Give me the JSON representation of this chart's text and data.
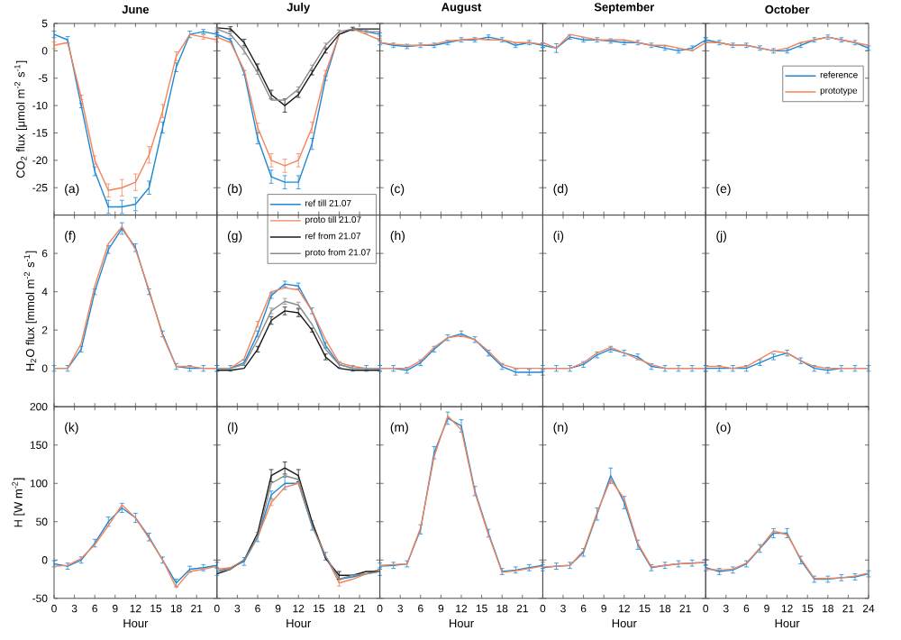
{
  "chart_data": [
    {
      "type": "line",
      "title": "June",
      "ylabel": "CO$_{2}$ flux [μmol m$^{-2}$ s$^{-1}$]",
      "x": [
        0,
        2,
        4,
        6,
        8,
        10,
        12,
        14,
        16,
        18,
        20,
        22,
        24
      ],
      "xlim": [
        0,
        24
      ],
      "ylim": [
        -30,
        5
      ],
      "xticks": [
        0,
        3,
        6,
        9,
        12,
        15,
        18,
        21
      ],
      "yticks": [
        -25,
        -20,
        -15,
        -10,
        -5,
        0,
        5
      ],
      "tick_labels": "y",
      "annotations": [
        "(a)"
      ],
      "series": [
        {
          "color": "#1f88d4",
          "values": [
            3,
            2,
            -10,
            -22,
            -28.5,
            -28.5,
            -28,
            -25,
            -14,
            -3,
            3,
            3.5,
            3
          ],
          "errors": [
            0.6,
            0.6,
            0.4,
            0.8,
            1.2,
            1.2,
            1.2,
            1.2,
            1,
            0.8,
            0.6,
            0.4,
            0.4
          ]
        },
        {
          "color": "#f4845a",
          "values": [
            1,
            1.5,
            -8.5,
            -20,
            -25.5,
            -25,
            -24,
            -19,
            -11,
            -1,
            3,
            2.5,
            2
          ],
          "errors": [
            0.6,
            null,
            0.4,
            0.8,
            1.2,
            1.5,
            1.5,
            1.5,
            1.2,
            0.8,
            null,
            0.4,
            0.4
          ]
        }
      ]
    },
    {
      "type": "line",
      "title": "July",
      "x": [
        0,
        2,
        4,
        6,
        8,
        10,
        12,
        14,
        16,
        18,
        20,
        22,
        24
      ],
      "xlim": [
        0,
        24
      ],
      "ylim": [
        -30,
        5
      ],
      "xticks": [
        0,
        3,
        6,
        9,
        12,
        15,
        18,
        21
      ],
      "yticks": [
        -25,
        -20,
        -15,
        -10,
        -5,
        0,
        5
      ],
      "tick_labels": false,
      "annotations": [
        "(b)"
      ],
      "legend": "bottom right",
      "series": [
        {
          "name": "ref till 21.07",
          "color": "#1f88d4",
          "values": [
            3,
            2,
            -4,
            -16,
            -23,
            -24,
            -24,
            -17,
            -5,
            3,
            4,
            3.5,
            3
          ],
          "errors": [
            0.3,
            0.3,
            0.4,
            1,
            1.2,
            1.2,
            1.2,
            1,
            0.4,
            null,
            null,
            null,
            0.3
          ]
        },
        {
          "name": "proto till 21.07",
          "color": "#f4845a",
          "values": [
            2.5,
            1.5,
            -3.5,
            -14,
            -20,
            -21,
            -20,
            -14,
            -4,
            3,
            4,
            3,
            2
          ],
          "errors": [
            null,
            null,
            null,
            0.8,
            1.2,
            1.2,
            1.2,
            1,
            0.4,
            null,
            null,
            null,
            0.3
          ]
        },
        {
          "name": "ref from 21.07",
          "color": "#1a1a1a",
          "values": [
            4.2,
            4,
            1.5,
            -3,
            -8,
            -10,
            -8,
            -4,
            0,
            3,
            4,
            4,
            4
          ],
          "errors": [
            null,
            0.4,
            0.6,
            0.6,
            0.8,
            1.2,
            0.5,
            0.4,
            0.4,
            null,
            0.3,
            null,
            null
          ]
        },
        {
          "name": "proto from 21.07",
          "color": "#8c8c8c",
          "values": [
            4,
            3,
            0,
            -4,
            -9,
            -9,
            -7,
            -3,
            1,
            3.5,
            4,
            3.5,
            3.5
          ],
          "errors": [
            0.2,
            0.3,
            0.6,
            0.3,
            null,
            null,
            0.4,
            0.4,
            0.4,
            0.3,
            null,
            0.3,
            null
          ]
        }
      ]
    },
    {
      "type": "line",
      "title": "August",
      "x": [
        0,
        2,
        4,
        6,
        8,
        10,
        12,
        14,
        16,
        18,
        20,
        22,
        24
      ],
      "xlim": [
        0,
        24
      ],
      "ylim": [
        -30,
        5
      ],
      "xticks": [
        0,
        3,
        6,
        9,
        12,
        15,
        18,
        21
      ],
      "yticks": [
        -25,
        -20,
        -15,
        -10,
        -5,
        0,
        5
      ],
      "tick_labels": false,
      "annotations": [
        "(c)"
      ],
      "series": [
        {
          "color": "#1f88d4",
          "values": [
            1.5,
            1,
            0.8,
            1,
            1,
            1.5,
            2,
            2,
            2.5,
            2,
            1,
            1.5,
            1
          ],
          "errors": [
            0.4,
            0.4,
            0.4,
            0.4,
            0.4,
            0.4,
            0.4,
            0.4,
            0.4,
            0.4,
            0.4,
            0.4,
            0.4
          ]
        },
        {
          "color": "#f4845a",
          "values": [
            1.5,
            1.2,
            1,
            1,
            1.2,
            1.8,
            2,
            2.2,
            2,
            2,
            1.5,
            1.5,
            1.2
          ]
        }
      ]
    },
    {
      "type": "line",
      "title": "September",
      "x": [
        0,
        2,
        4,
        6,
        8,
        10,
        12,
        14,
        16,
        18,
        20,
        22,
        24
      ],
      "xlim": [
        0,
        24
      ],
      "ylim": [
        -30,
        5
      ],
      "xticks": [
        0,
        3,
        6,
        9,
        12,
        15,
        18,
        21
      ],
      "yticks": [
        -25,
        -20,
        -15,
        -10,
        -5,
        0,
        5
      ],
      "tick_labels": false,
      "annotations": [
        "(d)"
      ],
      "series": [
        {
          "color": "#1f88d4",
          "values": [
            1,
            0.5,
            2.5,
            2,
            2,
            1.8,
            1.5,
            1.5,
            1,
            0.5,
            0,
            0.5,
            2
          ],
          "errors": [
            0.4,
            0.8,
            0.4,
            0.4,
            0.4,
            0.4,
            0.4,
            0.4,
            0.4,
            0.4,
            0.4,
            0.4,
            0.4
          ]
        },
        {
          "color": "#f4845a",
          "values": [
            1.5,
            0.5,
            3,
            2.5,
            2,
            2,
            2,
            1.5,
            1,
            1,
            0.5,
            0,
            1.5
          ]
        }
      ]
    },
    {
      "type": "line",
      "title": "October",
      "x": [
        0,
        2,
        4,
        6,
        8,
        10,
        12,
        14,
        16,
        18,
        20,
        22,
        24
      ],
      "xlim": [
        0,
        24
      ],
      "ylim": [
        -30,
        5
      ],
      "xticks": [
        0,
        3,
        6,
        9,
        12,
        15,
        18,
        21
      ],
      "yticks": [
        -25,
        -20,
        -15,
        -10,
        -5,
        0,
        5
      ],
      "tick_labels": false,
      "annotations": [
        "(e)"
      ],
      "legend": "top right",
      "series": [
        {
          "name": "reference",
          "color": "#1f88d4",
          "values": [
            2,
            1.5,
            1,
            1,
            0.5,
            0,
            0,
            1,
            2,
            2.5,
            2,
            1.5,
            0.5
          ],
          "errors": [
            0.4,
            0.4,
            0.4,
            0.4,
            0.4,
            0.4,
            0.4,
            0.4,
            0.4,
            0.4,
            0.4,
            0.4,
            0.4
          ]
        },
        {
          "name": "prototype",
          "color": "#f4845a",
          "values": [
            1.5,
            1.5,
            1,
            1,
            0.5,
            0,
            0.5,
            1.5,
            2,
            2.5,
            2,
            1.5,
            1
          ]
        }
      ]
    },
    {
      "type": "line",
      "ylabel": "H$_{2}$O flux [mmol m$^{-2}$ s$^{-1}$]",
      "x": [
        0,
        2,
        4,
        6,
        8,
        10,
        12,
        14,
        16,
        18,
        20,
        22,
        24
      ],
      "xlim": [
        0,
        24
      ],
      "ylim": [
        -2,
        8
      ],
      "xticks": [
        0,
        3,
        6,
        9,
        12,
        15,
        18,
        21
      ],
      "yticks": [
        0,
        2,
        4,
        6
      ],
      "tick_labels": "y",
      "annotations": [
        "(f)"
      ],
      "series": [
        {
          "color": "#1f88d4",
          "values": [
            0,
            0,
            1,
            4,
            6.2,
            7.3,
            6.3,
            4,
            1.8,
            0.1,
            0,
            0,
            0
          ],
          "errors": [
            0.15,
            0.15,
            0.15,
            0.15,
            0.2,
            0.3,
            0.2,
            0.15,
            0.15,
            0.15,
            0.15,
            0.15,
            0.15
          ]
        },
        {
          "color": "#f4845a",
          "values": [
            0,
            0,
            1.3,
            4.3,
            6.5,
            7.4,
            6.2,
            4.1,
            1.7,
            0.1,
            0.1,
            0,
            0
          ]
        }
      ]
    },
    {
      "type": "line",
      "x": [
        0,
        2,
        4,
        6,
        8,
        10,
        12,
        14,
        16,
        18,
        20,
        22,
        24
      ],
      "xlim": [
        0,
        24
      ],
      "ylim": [
        -2,
        8
      ],
      "xticks": [
        0,
        3,
        6,
        9,
        12,
        15,
        18,
        21
      ],
      "yticks": [
        0,
        2,
        4,
        6
      ],
      "tick_labels": false,
      "annotations": [
        "(g)"
      ],
      "series": [
        {
          "color": "#1f88d4",
          "values": [
            0,
            0,
            0.3,
            1.8,
            3.8,
            4.4,
            4.3,
            3,
            1.2,
            0.2,
            0,
            0,
            0
          ],
          "errors": [
            0.15,
            0.15,
            0.15,
            0.15,
            0.15,
            0.15,
            0.15,
            0.15,
            0.15,
            0.15,
            0.15,
            0.15,
            0.15
          ]
        },
        {
          "color": "#f4845a",
          "values": [
            0,
            0,
            0.5,
            2.3,
            4,
            4.2,
            4.1,
            3,
            1.5,
            0.3,
            0.1,
            0,
            0
          ],
          "errors": [
            null,
            null,
            null,
            0.15,
            null,
            null,
            null,
            null,
            null,
            null,
            null,
            null,
            null
          ]
        },
        {
          "color": "#1a1a1a",
          "values": [
            -0.1,
            -0.1,
            0,
            1,
            2.5,
            3,
            2.9,
            2,
            0.6,
            0,
            -0.1,
            -0.1,
            -0.1
          ],
          "errors": [
            null,
            null,
            null,
            0.15,
            0.2,
            0.2,
            0.2,
            0.1,
            0.15,
            null,
            null,
            null,
            null
          ]
        },
        {
          "color": "#8c8c8c",
          "values": [
            0,
            0,
            0.2,
            1.5,
            3,
            3.5,
            3.3,
            2.3,
            1,
            0.2,
            0,
            0,
            0
          ],
          "errors": [
            null,
            null,
            null,
            null,
            0.15,
            0.15,
            0.15,
            null,
            null,
            null,
            null,
            null,
            null
          ]
        }
      ]
    },
    {
      "type": "line",
      "x": [
        0,
        2,
        4,
        6,
        8,
        10,
        12,
        14,
        16,
        18,
        20,
        22,
        24
      ],
      "xlim": [
        0,
        24
      ],
      "ylim": [
        -2,
        8
      ],
      "xticks": [
        0,
        3,
        6,
        9,
        12,
        15,
        18,
        21
      ],
      "yticks": [
        0,
        2,
        4,
        6
      ],
      "tick_labels": false,
      "annotations": [
        "(h)"
      ],
      "series": [
        {
          "color": "#1f88d4",
          "values": [
            0,
            0,
            -0.1,
            0.3,
            1,
            1.6,
            1.8,
            1.5,
            0.8,
            0.1,
            -0.2,
            -0.2,
            -0.2
          ],
          "errors": [
            0.15,
            0.15,
            0.15,
            0.15,
            0.15,
            0.15,
            0.15,
            0.15,
            0.15,
            0.15,
            0.15,
            0.15,
            0.15
          ]
        },
        {
          "color": "#f4845a",
          "values": [
            0,
            0,
            0,
            0.4,
            1.1,
            1.6,
            1.7,
            1.5,
            0.9,
            0.2,
            0,
            0,
            0
          ]
        }
      ]
    },
    {
      "type": "line",
      "x": [
        0,
        2,
        4,
        6,
        8,
        10,
        12,
        14,
        16,
        18,
        20,
        22,
        24
      ],
      "xlim": [
        0,
        24
      ],
      "ylim": [
        -2,
        8
      ],
      "xticks": [
        0,
        3,
        6,
        9,
        12,
        15,
        18,
        21
      ],
      "yticks": [
        0,
        2,
        4,
        6
      ],
      "tick_labels": false,
      "annotations": [
        "(i)"
      ],
      "series": [
        {
          "color": "#1f88d4",
          "values": [
            0,
            0,
            0,
            0.2,
            0.7,
            1,
            0.8,
            0.6,
            0.1,
            0,
            0,
            0,
            0
          ],
          "errors": [
            0.15,
            0.15,
            0.15,
            0.15,
            0.15,
            0.15,
            0.15,
            0.15,
            0.15,
            0.15,
            0.15,
            0.15,
            0.15
          ]
        },
        {
          "color": "#f4845a",
          "values": [
            0,
            0,
            0,
            0.3,
            0.8,
            1.1,
            0.8,
            0.5,
            0.2,
            0,
            0,
            0,
            0
          ]
        }
      ]
    },
    {
      "type": "line",
      "x": [
        0,
        2,
        4,
        6,
        8,
        10,
        12,
        14,
        16,
        18,
        20,
        22,
        24
      ],
      "xlim": [
        0,
        24
      ],
      "ylim": [
        -2,
        8
      ],
      "xticks": [
        0,
        3,
        6,
        9,
        12,
        15,
        18,
        21
      ],
      "yticks": [
        0,
        2,
        4,
        6
      ],
      "tick_labels": false,
      "annotations": [
        "(j)"
      ],
      "series": [
        {
          "color": "#1f88d4",
          "values": [
            0,
            0,
            0,
            0,
            0.3,
            0.6,
            0.8,
            0.4,
            0,
            -0.1,
            0,
            0,
            0
          ],
          "errors": [
            0.15,
            0.15,
            0.15,
            0.15,
            0.15,
            0.15,
            0.15,
            0.15,
            0.15,
            0.15,
            0.15,
            0.15,
            0.15
          ]
        },
        {
          "color": "#f4845a",
          "values": [
            0.1,
            0.1,
            0,
            0.1,
            0.5,
            0.9,
            0.8,
            0.4,
            0.1,
            0,
            0,
            0,
            0
          ]
        }
      ]
    },
    {
      "type": "line",
      "xlabel": "Hour",
      "ylabel": "H [W m$^{-2}$]",
      "x": [
        0,
        2,
        4,
        6,
        8,
        10,
        12,
        14,
        16,
        18,
        20,
        22,
        24
      ],
      "xlim": [
        0,
        24
      ],
      "ylim": [
        -50,
        200
      ],
      "xticks": [
        0,
        3,
        6,
        9,
        12,
        15,
        18,
        21
      ],
      "yticks": [
        -50,
        0,
        50,
        100,
        150,
        200
      ],
      "annotations": [
        "(k)"
      ],
      "series": [
        {
          "color": "#1f88d4",
          "values": [
            -5,
            -8,
            0,
            22,
            50,
            68,
            55,
            30,
            0,
            -30,
            -12,
            -10,
            -7
          ],
          "errors": [
            4,
            4,
            4,
            5,
            6,
            6,
            6,
            5,
            4,
            5,
            4,
            4,
            4
          ]
        },
        {
          "color": "#f4845a",
          "values": [
            -8,
            -7,
            2,
            20,
            45,
            72,
            55,
            28,
            0,
            -36,
            -15,
            -12,
            -8
          ]
        }
      ]
    },
    {
      "type": "line",
      "xlabel": "Hour",
      "x": [
        0,
        2,
        4,
        6,
        8,
        10,
        12,
        14,
        16,
        18,
        20,
        22,
        24
      ],
      "xlim": [
        0,
        24
      ],
      "ylim": [
        -50,
        200
      ],
      "xticks": [
        0,
        3,
        6,
        9,
        12,
        15,
        18,
        21
      ],
      "yticks": [
        -50,
        0,
        50,
        100,
        150,
        200
      ],
      "tick_labels": "x",
      "annotations": [
        "(l)"
      ],
      "series": [
        {
          "color": "#1f88d4",
          "values": [
            -15,
            -10,
            -2,
            30,
            85,
            100,
            100,
            45,
            5,
            -25,
            -22,
            -18,
            -15
          ],
          "errors": [
            5,
            null,
            5,
            6,
            5,
            8,
            null,
            6,
            5,
            null,
            null,
            null,
            5
          ]
        },
        {
          "color": "#f4845a",
          "values": [
            -12,
            -10,
            0,
            30,
            75,
            95,
            100,
            50,
            5,
            -30,
            -25,
            -18,
            -12
          ],
          "errors": [
            null,
            null,
            null,
            null,
            4,
            null,
            null,
            null,
            null,
            4,
            null,
            null,
            null
          ]
        },
        {
          "color": "#1a1a1a",
          "values": [
            -18,
            -12,
            0,
            35,
            110,
            120,
            110,
            50,
            2,
            -20,
            -20,
            -15,
            -15
          ],
          "errors": [
            null,
            null,
            null,
            null,
            8,
            8,
            8,
            null,
            null,
            5,
            null,
            null,
            null
          ]
        },
        {
          "color": "#8c8c8c",
          "values": [
            -15,
            -12,
            0,
            30,
            100,
            110,
            105,
            45,
            5,
            -25,
            -20,
            -18,
            -15
          ]
        }
      ]
    },
    {
      "type": "line",
      "xlabel": "Hour",
      "x": [
        0,
        2,
        4,
        6,
        8,
        10,
        12,
        14,
        16,
        18,
        20,
        22,
        24
      ],
      "xlim": [
        0,
        24
      ],
      "ylim": [
        -50,
        200
      ],
      "xticks": [
        0,
        3,
        6,
        9,
        12,
        15,
        18,
        21
      ],
      "yticks": [
        -50,
        0,
        50,
        100,
        150,
        200
      ],
      "tick_labels": "x",
      "annotations": [
        "(m)"
      ],
      "series": [
        {
          "color": "#1f88d4",
          "values": [
            -8,
            -7,
            -5,
            40,
            140,
            185,
            175,
            90,
            35,
            -15,
            -13,
            -10,
            -7
          ],
          "errors": [
            4,
            4,
            4,
            6,
            8,
            8,
            8,
            6,
            5,
            4,
            4,
            4,
            4
          ]
        },
        {
          "color": "#f4845a",
          "values": [
            -7,
            -6,
            -5,
            42,
            135,
            188,
            170,
            88,
            33,
            -16,
            -14,
            -11,
            -8
          ]
        }
      ]
    },
    {
      "type": "line",
      "xlabel": "Hour",
      "x": [
        0,
        2,
        4,
        6,
        8,
        10,
        12,
        14,
        16,
        18,
        20,
        22,
        24
      ],
      "xlim": [
        0,
        24
      ],
      "ylim": [
        -50,
        200
      ],
      "xticks": [
        0,
        3,
        6,
        9,
        12,
        15,
        18,
        21
      ],
      "yticks": [
        -50,
        0,
        50,
        100,
        150,
        200
      ],
      "tick_labels": "x",
      "annotations": [
        "(n)"
      ],
      "series": [
        {
          "color": "#1f88d4",
          "values": [
            -10,
            -8,
            -7,
            10,
            60,
            110,
            75,
            20,
            -10,
            -7,
            -5,
            -4,
            -3
          ],
          "errors": [
            4,
            4,
            4,
            5,
            8,
            10,
            8,
            6,
            4,
            4,
            4,
            4,
            4
          ]
        },
        {
          "color": "#f4845a",
          "values": [
            -9,
            -8,
            -7,
            12,
            62,
            105,
            80,
            22,
            -9,
            -7,
            -5,
            -4,
            -3
          ]
        }
      ]
    },
    {
      "type": "line",
      "xlabel": "Hour",
      "x": [
        0,
        2,
        4,
        6,
        8,
        10,
        12,
        14,
        16,
        18,
        20,
        22,
        24
      ],
      "xlim": [
        0,
        24
      ],
      "ylim": [
        -50,
        200
      ],
      "xticks": [
        0,
        3,
        6,
        9,
        12,
        15,
        18,
        21,
        24
      ],
      "yticks": [
        -50,
        0,
        50,
        100,
        150,
        200
      ],
      "tick_labels": "x",
      "annotations": [
        "(o)"
      ],
      "series": [
        {
          "color": "#1f88d4",
          "values": [
            -10,
            -15,
            -13,
            -5,
            15,
            35,
            35,
            0,
            -25,
            -25,
            -23,
            -22,
            -18
          ],
          "errors": [
            4,
            4,
            4,
            4,
            5,
            6,
            6,
            5,
            4,
            4,
            4,
            4,
            4
          ]
        },
        {
          "color": "#f4845a",
          "values": [
            -12,
            -13,
            -12,
            -4,
            16,
            38,
            33,
            2,
            -24,
            -24,
            -23,
            -21,
            -17
          ]
        }
      ]
    }
  ]
}
